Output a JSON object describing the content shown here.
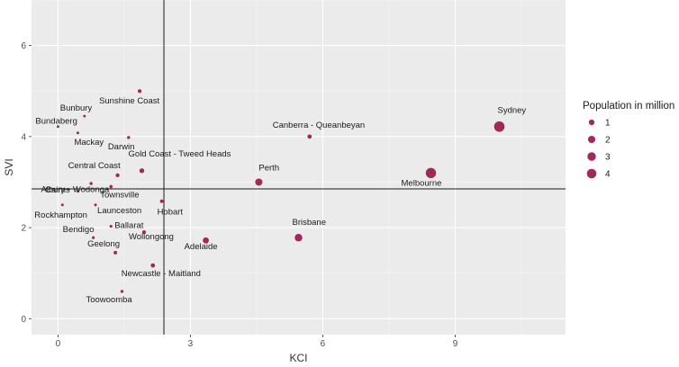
{
  "chart_data": {
    "type": "scatter",
    "xlabel": "KCI",
    "ylabel": "SVI",
    "xlim": [
      -0.6,
      11.5
    ],
    "ylim": [
      -0.35,
      7.0
    ],
    "x_ticks": [
      0,
      3,
      6,
      9
    ],
    "y_ticks": [
      0,
      2,
      4,
      6
    ],
    "reference_lines": {
      "vertical_x": 2.4,
      "horizontal_y": 2.85
    },
    "grid": true,
    "point_color": "#a3285a",
    "panel_color": "#ebebeb",
    "legend": {
      "title": "Population in million",
      "position": "right",
      "sizes": [
        1,
        2,
        3,
        4
      ],
      "labels": [
        "1",
        "2",
        "3",
        "4"
      ]
    },
    "points": [
      {
        "label": "Sydney",
        "x": 10.0,
        "y": 4.22,
        "pop": 5.0
      },
      {
        "label": "Melbourne",
        "x": 8.45,
        "y": 3.2,
        "pop": 4.8
      },
      {
        "label": "Brisbane",
        "x": 5.45,
        "y": 1.78,
        "pop": 2.3
      },
      {
        "label": "Perth",
        "x": 4.55,
        "y": 3.0,
        "pop": 2.0
      },
      {
        "label": "Adelaide",
        "x": 3.35,
        "y": 1.72,
        "pop": 1.3
      },
      {
        "label": "Gold Coast - Tweed Heads",
        "x": 1.9,
        "y": 3.25,
        "pop": 0.65
      },
      {
        "label": "Canberra - Queanbeyan",
        "x": 5.7,
        "y": 4.0,
        "pop": 0.45
      },
      {
        "label": "Newcastle - Maitland",
        "x": 2.15,
        "y": 1.17,
        "pop": 0.45
      },
      {
        "label": "Central Coast",
        "x": 1.35,
        "y": 3.15,
        "pop": 0.33
      },
      {
        "label": "Wollongong",
        "x": 1.95,
        "y": 1.9,
        "pop": 0.3
      },
      {
        "label": "Sunshine Coast",
        "x": 1.85,
        "y": 5.0,
        "pop": 0.3
      },
      {
        "label": "Geelong",
        "x": 1.3,
        "y": 1.45,
        "pop": 0.26
      },
      {
        "label": "Hobart",
        "x": 2.35,
        "y": 2.58,
        "pop": 0.22
      },
      {
        "label": "Townsville",
        "x": 1.2,
        "y": 2.9,
        "pop": 0.18
      },
      {
        "label": "Cairns",
        "x": 0.75,
        "y": 2.97,
        "pop": 0.15
      },
      {
        "label": "Darwin",
        "x": 1.6,
        "y": 3.98,
        "pop": 0.15
      },
      {
        "label": "Toowoomba",
        "x": 1.45,
        "y": 0.6,
        "pop": 0.14
      },
      {
        "label": "Ballarat",
        "x": 1.2,
        "y": 2.03,
        "pop": 0.1
      },
      {
        "label": "Bendigo",
        "x": 0.8,
        "y": 1.78,
        "pop": 0.1
      },
      {
        "label": "Albury - Wodonga",
        "x": 0.45,
        "y": 2.8,
        "pop": 0.09
      },
      {
        "label": "Launceston",
        "x": 0.85,
        "y": 2.5,
        "pop": 0.09
      },
      {
        "label": "Mackay",
        "x": 0.45,
        "y": 4.08,
        "pop": 0.08
      },
      {
        "label": "Rockhampton",
        "x": 0.1,
        "y": 2.5,
        "pop": 0.08
      },
      {
        "label": "Bunbury",
        "x": 0.6,
        "y": 4.45,
        "pop": 0.07
      },
      {
        "label": "Bundaberg",
        "x": 0.0,
        "y": 4.22,
        "pop": 0.07
      }
    ]
  }
}
